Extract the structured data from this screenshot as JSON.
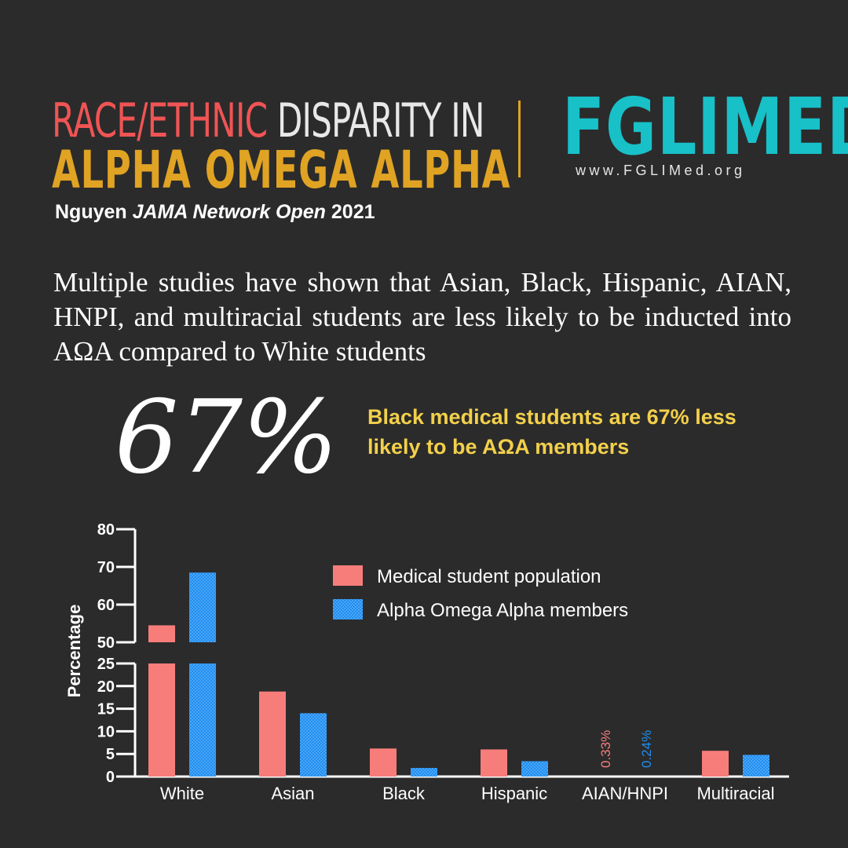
{
  "header": {
    "title_part1": "RACE/ETHNIC",
    "title_part2": " DISPARITY IN",
    "title_line2": "ALPHA OMEGA ALPHA",
    "citation_author": "Nguyen ",
    "citation_journal": "JAMA Network Open",
    "citation_year": " 2021",
    "logo": "FGLIMED",
    "logo_url": "www.FGLIMed.org"
  },
  "intro_text": "Multiple studies have shown that Asian, Black,  Hispanic, AIAN, HNPI, and multiracial students are less likely to be inducted into AΩA compared to White students",
  "stat": {
    "value": "67%",
    "text": "Black medical students are 67% less likely to be AΩA members"
  },
  "colors": {
    "accent_red": "#f05454",
    "accent_gold": "#e0a323",
    "logo_teal": "#18c0c8",
    "stat_yellow": "#f3d04b",
    "series_population": "#f77d7b",
    "series_aoa": "#1f8ef0"
  },
  "chart_data": {
    "type": "bar",
    "ylabel": "Percentage",
    "xlabel": "",
    "axis_break": {
      "lower": [
        0,
        25
      ],
      "upper": [
        50,
        80
      ]
    },
    "yticks_lower": [
      "0",
      "5",
      "10",
      "15",
      "20",
      "25"
    ],
    "yticks_upper": [
      "50",
      "60",
      "70",
      "80"
    ],
    "categories": [
      "White",
      "Asian",
      "Black",
      "Hispanic",
      "AIAN/HNPI",
      "Multiracial"
    ],
    "series": [
      {
        "name": "Medical student population",
        "values": [
          54.5,
          18.8,
          6.2,
          6.0,
          0.33,
          5.7
        ],
        "pattern": "solid"
      },
      {
        "name": "Alpha Omega Alpha members",
        "values": [
          68.5,
          14.0,
          1.9,
          3.4,
          0.24,
          4.8
        ],
        "pattern": "dotted"
      }
    ],
    "data_labels": [
      {
        "category": "AIAN/HNPI",
        "series": 0,
        "text": "0.33%"
      },
      {
        "category": "AIAN/HNPI",
        "series": 1,
        "text": "0.24%"
      }
    ],
    "legend_position": "top-right"
  }
}
